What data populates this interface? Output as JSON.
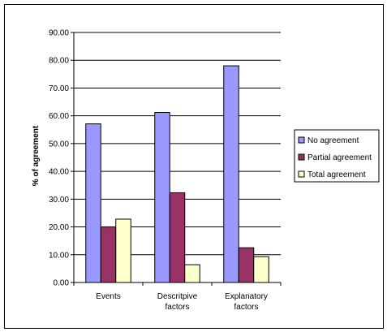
{
  "chart_data": {
    "type": "bar",
    "categories": [
      [
        "Events"
      ],
      [
        "Descritpive",
        "factors"
      ],
      [
        "Explanatory",
        "factors"
      ]
    ],
    "series": [
      {
        "name": "No agreement",
        "color": "#9999ff",
        "values": [
          57.1,
          61.2,
          78.0
        ]
      },
      {
        "name": "Partial agreement",
        "color": "#993366",
        "values": [
          20.0,
          32.3,
          12.5
        ]
      },
      {
        "name": "Total agreement",
        "color": "#ffffcc",
        "values": [
          22.8,
          6.4,
          9.3
        ]
      }
    ],
    "title": "",
    "xlabel": "",
    "ylabel": "% of agreement",
    "ylim": [
      0,
      90
    ],
    "yticks": [
      "0.00",
      "10.00",
      "20.00",
      "30.00",
      "40.00",
      "50.00",
      "60.00",
      "70.00",
      "80.00",
      "90.00"
    ],
    "grid": true,
    "legend_position": "right"
  }
}
